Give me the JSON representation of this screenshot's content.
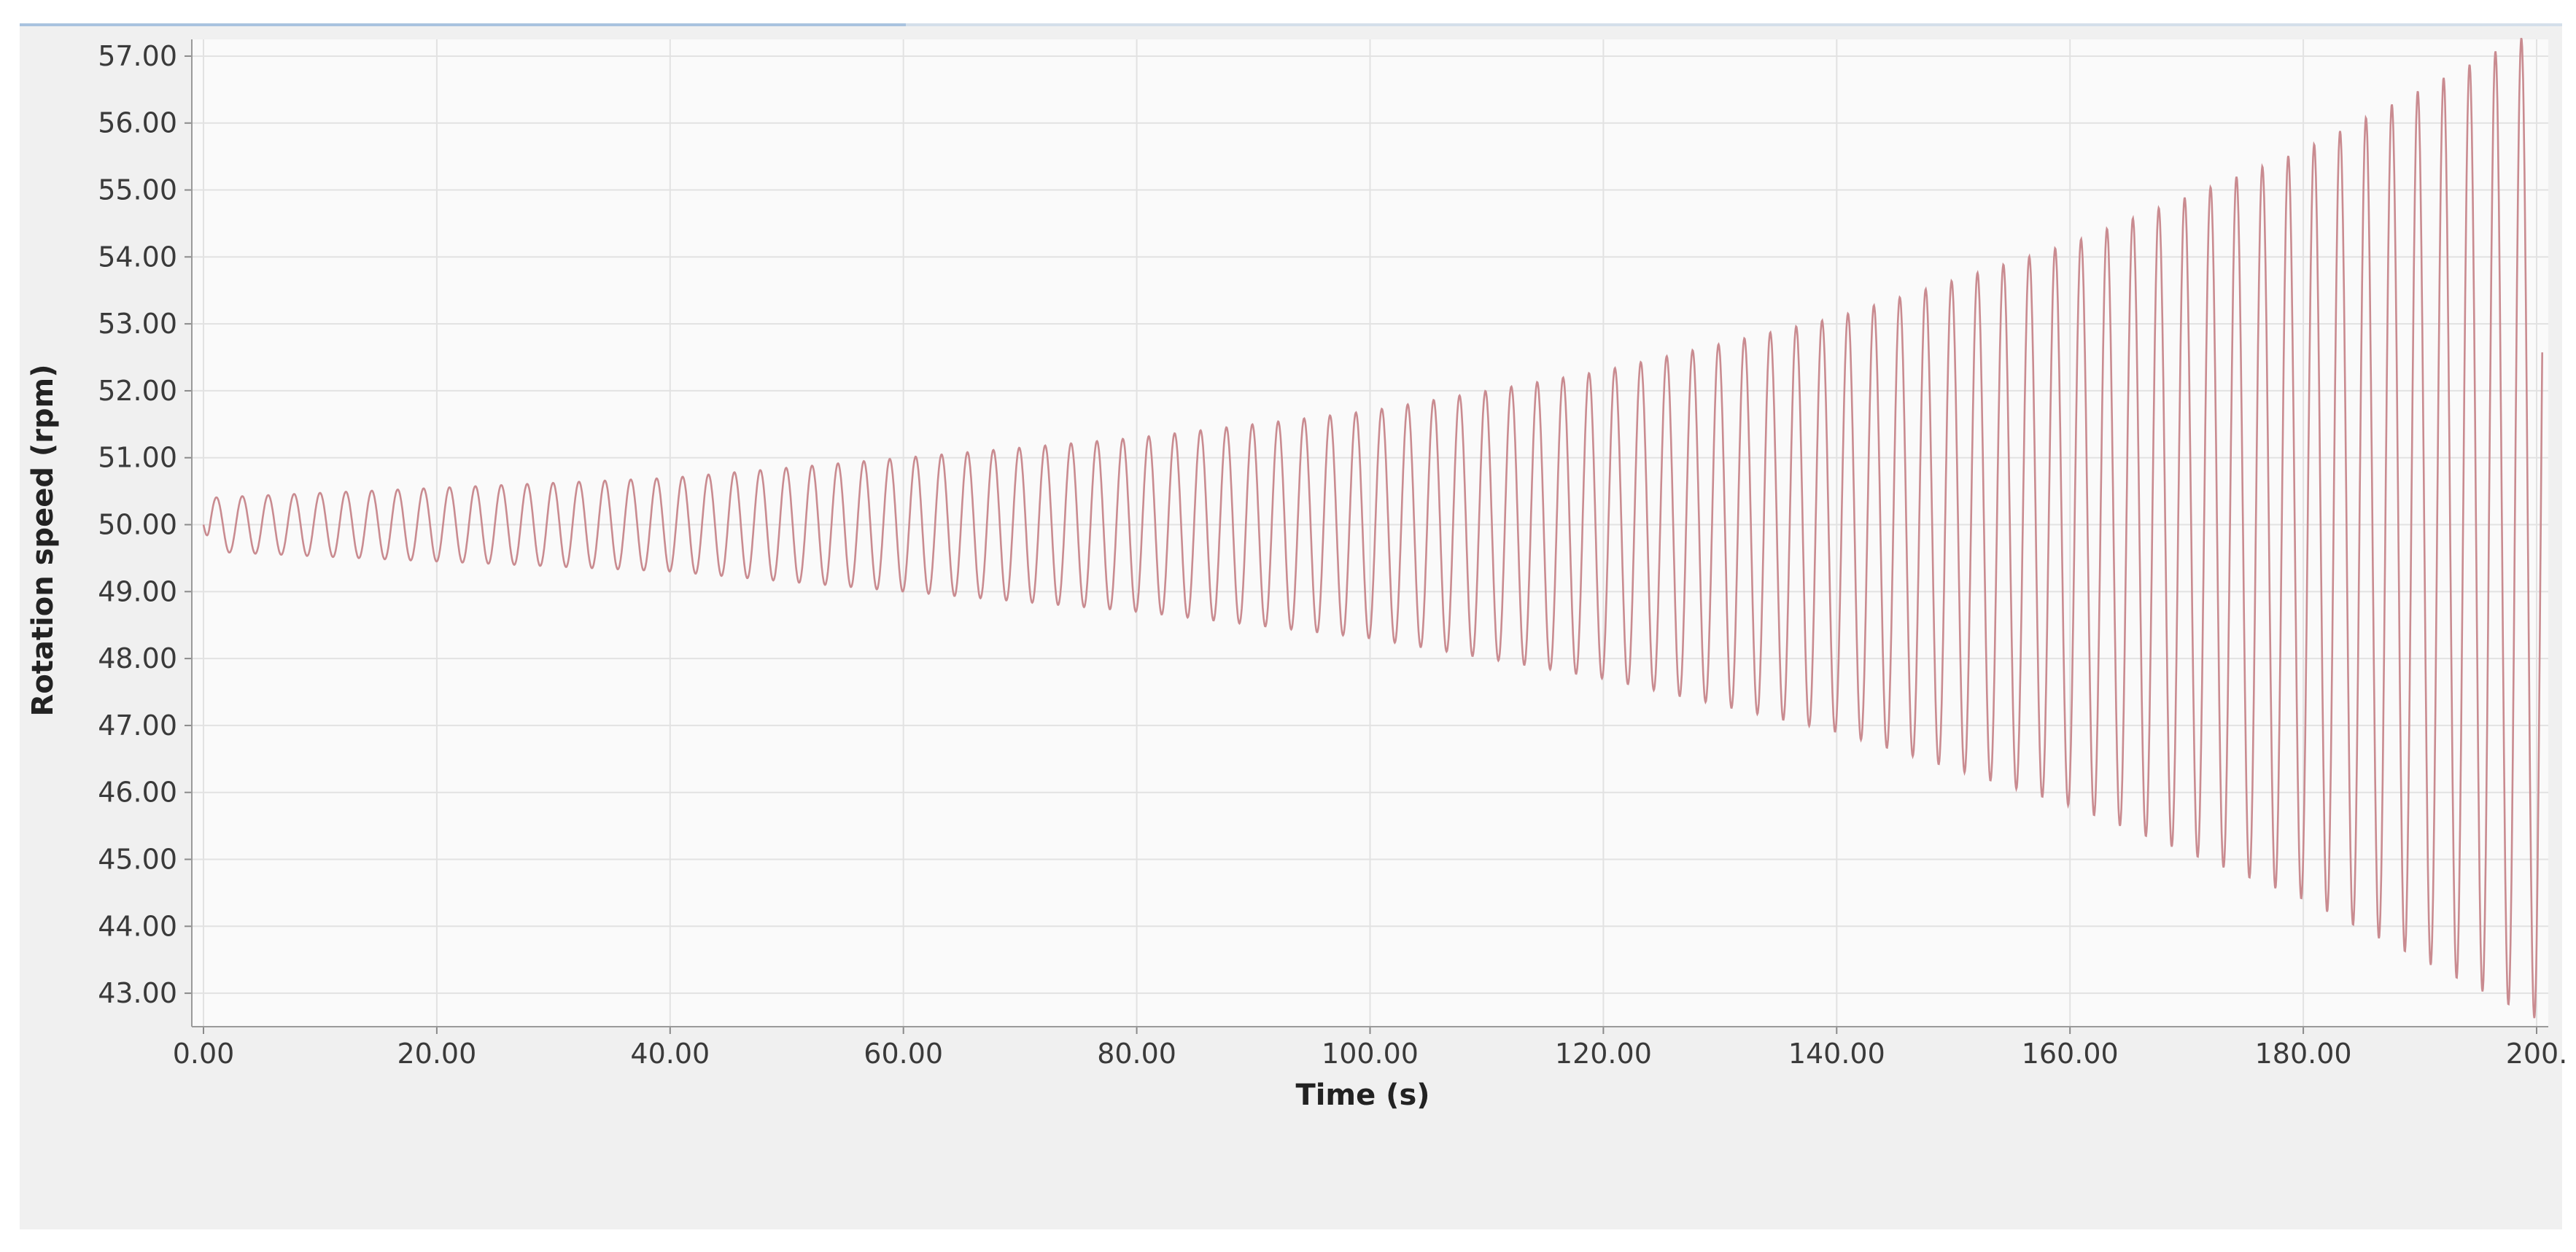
{
  "colors": {
    "line": "#c98b90",
    "plot_background": "#fafafa",
    "grid": "#e2e2e2",
    "panel": "#f0f0f0"
  },
  "chart_data": {
    "type": "line",
    "xlabel": "Time (s)",
    "ylabel": "Rotation speed (rpm)",
    "xlim": [
      -1,
      201
    ],
    "ylim": [
      42.5,
      57.25
    ],
    "x_ticks": [
      0,
      20,
      40,
      60,
      80,
      100,
      120,
      140,
      160,
      180,
      200
    ],
    "x_tick_labels": [
      "0.00",
      "20.00",
      "40.00",
      "60.00",
      "80.00",
      "100.00",
      "120.00",
      "140.00",
      "160.00",
      "180.00",
      "200."
    ],
    "y_ticks": [
      43,
      44,
      45,
      46,
      47,
      48,
      49,
      50,
      51,
      52,
      53,
      54,
      55,
      56,
      57
    ],
    "y_tick_labels": [
      "43.00",
      "44.00",
      "45.00",
      "46.00",
      "47.00",
      "48.00",
      "49.00",
      "50.00",
      "51.00",
      "52.00",
      "53.00",
      "54.00",
      "55.00",
      "56.00",
      "57.00"
    ],
    "grid": true,
    "series": [
      {
        "signal": "growing sinusoidal oscillation about 50 rpm",
        "center": 50.0,
        "period_s": 2.22,
        "t_start": 0,
        "t_end": 200.5,
        "amplitude_at": [
          {
            "t": 0,
            "amp": 0.4
          },
          {
            "t": 20,
            "amp": 0.55
          },
          {
            "t": 40,
            "amp": 0.7
          },
          {
            "t": 60,
            "amp": 1.0
          },
          {
            "t": 80,
            "amp": 1.3
          },
          {
            "t": 100,
            "amp": 1.7
          },
          {
            "t": 120,
            "amp": 2.3
          },
          {
            "t": 140,
            "amp": 3.1
          },
          {
            "t": 160,
            "amp": 4.2
          },
          {
            "t": 180,
            "amp": 5.6
          },
          {
            "t": 199,
            "amp": 7.3
          }
        ]
      }
    ]
  }
}
